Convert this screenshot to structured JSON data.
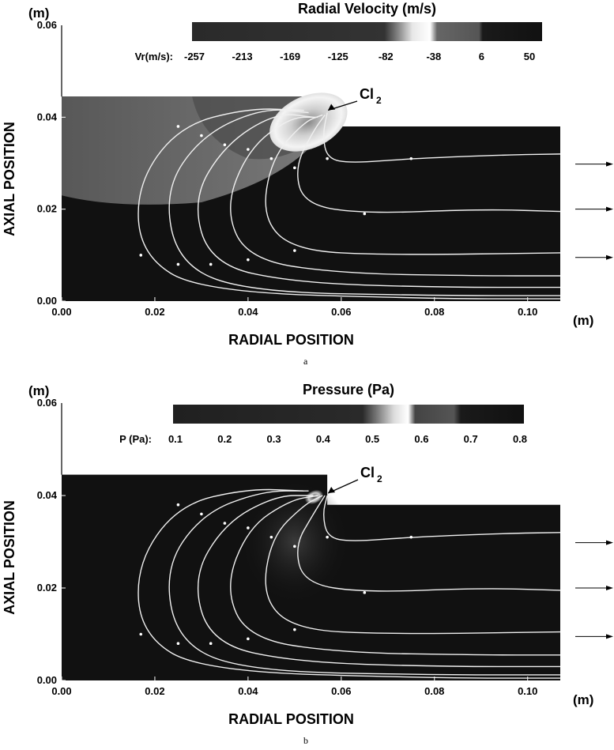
{
  "chart_data": [
    {
      "type": "heatmap",
      "panel_label": "a",
      "title": "Radial Velocity (m/s)",
      "colorbar_label": "Vr(m/s):",
      "colorbar_ticks": [
        "-257",
        "-213",
        "-169",
        "-125",
        "-82",
        "-38",
        "6",
        "50"
      ],
      "colorbar_range": [
        -257,
        50
      ],
      "x_unit": "(m)",
      "y_unit": "(m)",
      "xlabel": "RADIAL POSITION",
      "ylabel": "AXIAL POSITION",
      "x_ticks": [
        "0.00",
        "0.02",
        "0.04",
        "0.06",
        "0.08",
        "0.10"
      ],
      "y_ticks": [
        "0.00",
        "0.02",
        "0.04",
        "0.06"
      ],
      "xlim": [
        0,
        0.107
      ],
      "ylim": [
        0,
        0.06
      ],
      "inlet_label": "Cl",
      "inlet_subscript": "2",
      "inlet_point": [
        0.055,
        0.041
      ],
      "upper_step": {
        "x_end": 0.057,
        "y_top": 0.0445
      },
      "lower_step": {
        "x_start": 0.057,
        "y_top": 0.038
      },
      "outflow_arrows_y": [
        0.0298,
        0.02,
        0.0095
      ],
      "streamlines": [
        {
          "points": [
            [
              0.052,
              0.0415
            ],
            [
              0.04,
              0.042
            ],
            [
              0.025,
              0.038
            ],
            [
              0.016,
              0.025
            ],
            [
              0.017,
              0.01
            ],
            [
              0.03,
              0.002
            ],
            [
              0.08,
              0.0005
            ],
            [
              0.107,
              0.0005
            ]
          ]
        },
        {
          "points": [
            [
              0.053,
              0.041
            ],
            [
              0.043,
              0.042
            ],
            [
              0.03,
              0.036
            ],
            [
              0.022,
              0.024
            ],
            [
              0.025,
              0.008
            ],
            [
              0.04,
              0.002
            ],
            [
              0.08,
              0.0012
            ],
            [
              0.107,
              0.0012
            ]
          ]
        },
        {
          "points": [
            [
              0.054,
              0.04
            ],
            [
              0.046,
              0.041
            ],
            [
              0.035,
              0.034
            ],
            [
              0.028,
              0.022
            ],
            [
              0.032,
              0.008
            ],
            [
              0.05,
              0.004
            ],
            [
              0.08,
              0.003
            ],
            [
              0.107,
              0.003
            ]
          ]
        },
        {
          "points": [
            [
              0.055,
              0.04
            ],
            [
              0.049,
              0.04
            ],
            [
              0.04,
              0.033
            ],
            [
              0.035,
              0.02
            ],
            [
              0.04,
              0.009
            ],
            [
              0.06,
              0.006
            ],
            [
              0.09,
              0.0055
            ],
            [
              0.107,
              0.0055
            ]
          ]
        },
        {
          "points": [
            [
              0.056,
              0.0405
            ],
            [
              0.052,
              0.039
            ],
            [
              0.045,
              0.031
            ],
            [
              0.043,
              0.018
            ],
            [
              0.05,
              0.011
            ],
            [
              0.07,
              0.01
            ],
            [
              0.107,
              0.0105
            ]
          ]
        },
        {
          "points": [
            [
              0.0565,
              0.0405
            ],
            [
              0.054,
              0.037
            ],
            [
              0.05,
              0.029
            ],
            [
              0.052,
              0.021
            ],
            [
              0.065,
              0.019
            ],
            [
              0.09,
              0.02
            ],
            [
              0.107,
              0.0195
            ]
          ]
        },
        {
          "points": [
            [
              0.057,
              0.041
            ],
            [
              0.056,
              0.036
            ],
            [
              0.057,
              0.031
            ],
            [
              0.062,
              0.03
            ],
            [
              0.075,
              0.031
            ],
            [
              0.095,
              0.0318
            ],
            [
              0.107,
              0.032
            ]
          ]
        }
      ]
    },
    {
      "type": "heatmap",
      "panel_label": "b",
      "title": "Pressure (Pa)",
      "colorbar_label": "P (Pa):",
      "colorbar_ticks": [
        "0.1",
        "0.2",
        "0.3",
        "0.4",
        "0.5",
        "0.6",
        "0.7",
        "0.8"
      ],
      "colorbar_range": [
        0.1,
        0.8
      ],
      "x_unit": "(m)",
      "y_unit": "(m)",
      "xlabel": "RADIAL POSITION",
      "ylabel": "AXIAL POSITION",
      "x_ticks": [
        "0.00",
        "0.02",
        "0.04",
        "0.06",
        "0.08",
        "0.10"
      ],
      "y_ticks": [
        "0.00",
        "0.02",
        "0.04",
        "0.06"
      ],
      "xlim": [
        0,
        0.107
      ],
      "ylim": [
        0,
        0.06
      ],
      "inlet_label": "Cl",
      "inlet_subscript": "2",
      "inlet_point": [
        0.0545,
        0.04
      ],
      "upper_step": {
        "x_end": 0.057,
        "y_top": 0.0445
      },
      "lower_step": {
        "x_start": 0.057,
        "y_top": 0.038
      },
      "outflow_arrows_y": [
        0.0298,
        0.02,
        0.0095
      ],
      "streamlines": [
        {
          "points": [
            [
              0.052,
              0.041
            ],
            [
              0.04,
              0.0415
            ],
            [
              0.025,
              0.038
            ],
            [
              0.016,
              0.025
            ],
            [
              0.017,
              0.01
            ],
            [
              0.03,
              0.002
            ],
            [
              0.08,
              0.0005
            ],
            [
              0.107,
              0.0005
            ]
          ]
        },
        {
          "points": [
            [
              0.053,
              0.041
            ],
            [
              0.043,
              0.041
            ],
            [
              0.03,
              0.036
            ],
            [
              0.022,
              0.024
            ],
            [
              0.025,
              0.008
            ],
            [
              0.04,
              0.002
            ],
            [
              0.08,
              0.0012
            ],
            [
              0.107,
              0.0012
            ]
          ]
        },
        {
          "points": [
            [
              0.054,
              0.04
            ],
            [
              0.046,
              0.04
            ],
            [
              0.035,
              0.034
            ],
            [
              0.028,
              0.022
            ],
            [
              0.032,
              0.008
            ],
            [
              0.05,
              0.004
            ],
            [
              0.08,
              0.003
            ],
            [
              0.107,
              0.003
            ]
          ]
        },
        {
          "points": [
            [
              0.055,
              0.04
            ],
            [
              0.049,
              0.039
            ],
            [
              0.04,
              0.033
            ],
            [
              0.035,
              0.02
            ],
            [
              0.04,
              0.009
            ],
            [
              0.06,
              0.006
            ],
            [
              0.09,
              0.0055
            ],
            [
              0.107,
              0.0055
            ]
          ]
        },
        {
          "points": [
            [
              0.056,
              0.04
            ],
            [
              0.052,
              0.038
            ],
            [
              0.045,
              0.031
            ],
            [
              0.043,
              0.018
            ],
            [
              0.05,
              0.011
            ],
            [
              0.07,
              0.01
            ],
            [
              0.107,
              0.0105
            ]
          ]
        },
        {
          "points": [
            [
              0.0565,
              0.04
            ],
            [
              0.054,
              0.036
            ],
            [
              0.05,
              0.029
            ],
            [
              0.052,
              0.021
            ],
            [
              0.065,
              0.019
            ],
            [
              0.09,
              0.02
            ],
            [
              0.107,
              0.0195
            ]
          ]
        },
        {
          "points": [
            [
              0.057,
              0.04
            ],
            [
              0.056,
              0.036
            ],
            [
              0.057,
              0.031
            ],
            [
              0.062,
              0.03
            ],
            [
              0.075,
              0.031
            ],
            [
              0.095,
              0.0318
            ],
            [
              0.107,
              0.032
            ]
          ]
        }
      ]
    }
  ]
}
